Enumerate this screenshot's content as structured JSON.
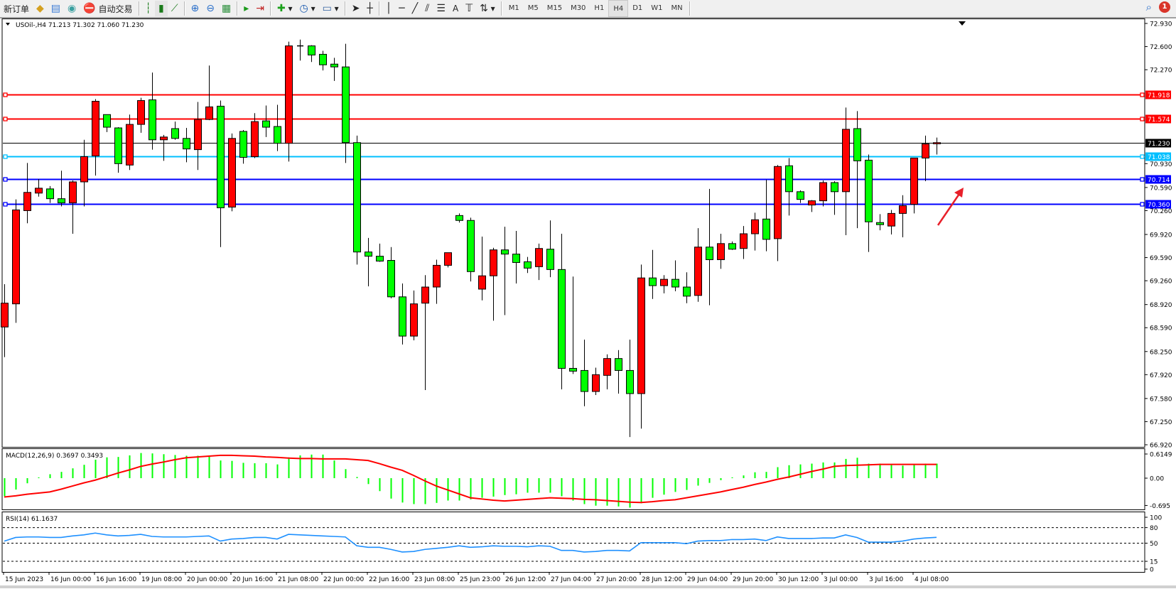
{
  "toolbar": {
    "new_order_label": "新订单",
    "auto_trading_label": "自动交易",
    "icons": [
      "new-order-icon",
      "market-watch-icon",
      "navigator-icon",
      "signals-icon",
      "autotrading-icon",
      "bar-chart-icon",
      "candlestick-icon",
      "line-chart-icon",
      "zoom-in-icon",
      "zoom-out-icon",
      "tile-windows-icon",
      "auto-scroll-icon",
      "chart-shift-icon",
      "indicators-icon",
      "periods-icon",
      "templates-icon",
      "cursor-icon",
      "crosshair-icon",
      "vertical-line-icon",
      "horizontal-line-icon",
      "trendline-icon",
      "fibonacci-icon",
      "fibo-fan-icon",
      "text-icon",
      "text-label-icon",
      "arrows-icon",
      "search-icon",
      "notifications-icon"
    ],
    "text_tool": "A",
    "timeframes": [
      "M1",
      "M5",
      "M15",
      "M30",
      "H1",
      "H4",
      "D1",
      "W1",
      "MN"
    ],
    "active_timeframe": "H4",
    "notification_count": "1"
  },
  "chart_data": {
    "type": "candlestick",
    "header": "USOil-,H4  71.213 71.302 71.060 71.230",
    "symbol": "USOil-",
    "timeframe": "H4",
    "ohlc_readout": {
      "open": 71.213,
      "high": 71.302,
      "low": 71.06,
      "close": 71.23
    },
    "ylim": [
      66.92,
      72.93
    ],
    "colors": {
      "up": "#ff0000",
      "down": "#00ff00",
      "wick": "#000000"
    },
    "price_axis": {
      "ticks": [
        "72.930",
        "72.600",
        "72.270",
        "70.930",
        "70.590",
        "70.260",
        "69.920",
        "69.590",
        "69.260",
        "68.920",
        "68.590",
        "68.250",
        "67.920",
        "67.580",
        "67.250",
        "66.920"
      ]
    },
    "time_axis": {
      "labels": [
        "15 Jun 2023",
        "16 Jun 00:00",
        "16 Jun 16:00",
        "19 Jun 08:00",
        "20 Jun 00:00",
        "20 Jun 16:00",
        "21 Jun 08:00",
        "22 Jun 00:00",
        "22 Jun 16:00",
        "23 Jun 08:00",
        "25 Jun 23:00",
        "26 Jun 12:00",
        "27 Jun 04:00",
        "27 Jun 20:00",
        "28 Jun 12:00",
        "29 Jun 04:00",
        "29 Jun 20:00",
        "30 Jun 12:00",
        "3 Jul 00:00",
        "3 Jul 16:00",
        "4 Jul 08:00"
      ],
      "bars_per_label": 4
    },
    "candles_ohlc": [
      [
        68.6,
        69.21,
        68.17,
        68.94
      ],
      [
        68.93,
        70.42,
        68.66,
        70.27
      ],
      [
        70.26,
        70.94,
        70.08,
        70.52
      ],
      [
        70.51,
        70.71,
        70.46,
        70.58
      ],
      [
        70.57,
        70.61,
        70.37,
        70.43
      ],
      [
        70.43,
        70.83,
        70.32,
        70.37
      ],
      [
        70.37,
        70.69,
        69.93,
        70.67
      ],
      [
        70.67,
        71.27,
        70.32,
        71.03
      ],
      [
        71.04,
        71.85,
        70.76,
        71.82
      ],
      [
        71.63,
        71.63,
        71.38,
        71.45
      ],
      [
        71.44,
        71.45,
        70.8,
        70.93
      ],
      [
        70.91,
        71.63,
        70.84,
        71.49
      ],
      [
        71.49,
        71.87,
        71.37,
        71.83
      ],
      [
        71.84,
        72.23,
        71.13,
        71.27
      ],
      [
        71.27,
        71.34,
        70.97,
        71.31
      ],
      [
        71.43,
        71.53,
        71.27,
        71.29
      ],
      [
        71.29,
        71.44,
        70.95,
        71.14
      ],
      [
        71.13,
        71.81,
        70.84,
        71.56
      ],
      [
        71.56,
        72.33,
        71.55,
        71.74
      ],
      [
        71.75,
        71.83,
        69.74,
        70.3
      ],
      [
        70.31,
        71.36,
        70.25,
        71.29
      ],
      [
        71.39,
        71.41,
        70.93,
        71.02
      ],
      [
        71.03,
        71.65,
        71.01,
        71.53
      ],
      [
        71.54,
        71.76,
        71.31,
        71.45
      ],
      [
        71.46,
        71.77,
        71.11,
        71.22
      ],
      [
        71.22,
        72.67,
        70.96,
        72.61
      ],
      [
        72.61,
        72.7,
        72.4,
        72.61
      ],
      [
        72.61,
        72.62,
        72.38,
        72.48
      ],
      [
        72.49,
        72.54,
        72.26,
        72.34
      ],
      [
        72.35,
        72.44,
        72.11,
        72.31
      ],
      [
        72.31,
        72.64,
        70.94,
        71.23
      ],
      [
        71.23,
        71.33,
        69.49,
        69.67
      ],
      [
        69.67,
        69.87,
        69.18,
        69.61
      ],
      [
        69.61,
        69.79,
        69.53,
        69.54
      ],
      [
        69.55,
        69.74,
        69.01,
        69.03
      ],
      [
        69.03,
        69.22,
        68.35,
        68.47
      ],
      [
        68.47,
        69.12,
        68.41,
        68.93
      ],
      [
        68.94,
        69.34,
        67.7,
        69.17
      ],
      [
        69.17,
        69.56,
        68.93,
        69.48
      ],
      [
        69.48,
        69.66,
        69.45,
        69.66
      ],
      [
        70.19,
        70.22,
        70.09,
        70.12
      ],
      [
        70.12,
        70.16,
        69.25,
        69.39
      ],
      [
        69.14,
        69.89,
        68.98,
        69.33
      ],
      [
        69.33,
        69.73,
        68.69,
        69.7
      ],
      [
        69.7,
        70.03,
        68.77,
        69.64
      ],
      [
        69.64,
        69.97,
        69.22,
        69.52
      ],
      [
        69.53,
        69.6,
        69.37,
        69.44
      ],
      [
        69.46,
        69.79,
        69.27,
        69.72
      ],
      [
        69.71,
        70.12,
        69.31,
        69.42
      ],
      [
        69.42,
        69.93,
        67.71,
        68.01
      ],
      [
        68.01,
        69.32,
        67.93,
        67.97
      ],
      [
        67.98,
        68.42,
        67.47,
        67.68
      ],
      [
        67.68,
        68.02,
        67.63,
        67.92
      ],
      [
        67.91,
        68.21,
        67.71,
        68.15
      ],
      [
        68.15,
        68.27,
        67.65,
        67.98
      ],
      [
        67.98,
        68.42,
        67.03,
        67.65
      ],
      [
        67.65,
        69.49,
        67.15,
        69.3
      ],
      [
        69.3,
        69.7,
        69.0,
        69.19
      ],
      [
        69.19,
        69.34,
        69.08,
        69.28
      ],
      [
        69.28,
        69.55,
        69.11,
        69.17
      ],
      [
        69.17,
        69.38,
        68.94,
        69.04
      ],
      [
        69.05,
        70.01,
        68.96,
        69.74
      ],
      [
        69.74,
        70.57,
        68.91,
        69.56
      ],
      [
        69.56,
        69.93,
        69.43,
        69.79
      ],
      [
        69.79,
        69.82,
        69.7,
        69.71
      ],
      [
        69.72,
        70.04,
        69.57,
        69.93
      ],
      [
        69.93,
        70.23,
        69.69,
        70.13
      ],
      [
        70.14,
        70.7,
        69.68,
        69.85
      ],
      [
        69.86,
        70.91,
        69.54,
        70.89
      ],
      [
        70.9,
        71.01,
        70.19,
        70.53
      ],
      [
        70.53,
        70.55,
        70.37,
        70.42
      ],
      [
        70.34,
        70.41,
        70.24,
        70.4
      ],
      [
        70.4,
        70.69,
        70.32,
        70.66
      ],
      [
        70.66,
        70.68,
        70.2,
        70.53
      ],
      [
        70.53,
        71.73,
        69.91,
        71.42
      ],
      [
        71.43,
        71.68,
        70.01,
        70.97
      ],
      [
        70.98,
        71.06,
        69.67,
        70.1
      ],
      [
        70.09,
        70.21,
        69.98,
        70.06
      ],
      [
        70.04,
        70.27,
        69.92,
        70.22
      ],
      [
        70.22,
        70.48,
        69.88,
        70.33
      ],
      [
        70.35,
        71.01,
        70.22,
        71.01
      ],
      [
        71.01,
        71.33,
        70.68,
        71.21
      ],
      [
        71.213,
        71.302,
        71.06,
        71.23
      ]
    ],
    "levels": [
      {
        "price": 71.918,
        "label": "71.918",
        "color": "#ff0000"
      },
      {
        "price": 71.574,
        "label": "71.574",
        "color": "#ff0000"
      },
      {
        "price": 71.23,
        "label": "71.230",
        "color": "#000000",
        "kind": "current-price"
      },
      {
        "price": 71.038,
        "label": "71.038",
        "color": "#00bfff"
      },
      {
        "price": 70.714,
        "label": "70.714",
        "color": "#0000ff"
      },
      {
        "price": 70.36,
        "label": "70.360",
        "color": "#0000ff"
      }
    ],
    "annotation": {
      "type": "arrow",
      "color": "#e8202a",
      "direction": "up-right"
    },
    "macd": {
      "label": "MACD(12,26,9) 0.3697 0.3493",
      "ticks": [
        "0.6149",
        "0.00",
        "-0.695"
      ],
      "ylim": [
        -0.695,
        0.6149
      ],
      "main_color": "#00ff00",
      "signal_color": "#ff0000",
      "main": [
        -0.46,
        -0.29,
        -0.13,
        0.02,
        0.1,
        0.16,
        0.25,
        0.34,
        0.47,
        0.53,
        0.54,
        0.58,
        0.64,
        0.63,
        0.61,
        0.59,
        0.57,
        0.57,
        0.57,
        0.45,
        0.44,
        0.39,
        0.38,
        0.38,
        0.35,
        0.53,
        0.58,
        0.6,
        0.6,
        0.45,
        0.23,
        0.03,
        -0.15,
        -0.33,
        -0.52,
        -0.62,
        -0.66,
        -0.66,
        -0.63,
        -0.57,
        -0.57,
        -0.54,
        -0.5,
        -0.47,
        -0.43,
        -0.41,
        -0.37,
        -0.37,
        -0.37,
        -0.46,
        -0.57,
        -0.66,
        -0.7,
        -0.7,
        -0.72,
        -0.75,
        -0.64,
        -0.5,
        -0.42,
        -0.35,
        -0.3,
        -0.19,
        -0.12,
        -0.05,
        0.02,
        0.07,
        0.15,
        0.16,
        0.28,
        0.33,
        0.35,
        0.37,
        0.4,
        0.4,
        0.49,
        0.52,
        0.37,
        0.37,
        0.34,
        0.32,
        0.36,
        0.37,
        0.3697
      ],
      "signal": [
        -0.48,
        -0.45,
        -0.41,
        -0.38,
        -0.35,
        -0.28,
        -0.2,
        -0.12,
        -0.05,
        0.04,
        0.13,
        0.21,
        0.3,
        0.36,
        0.41,
        0.47,
        0.52,
        0.54,
        0.56,
        0.58,
        0.58,
        0.57,
        0.56,
        0.54,
        0.53,
        0.51,
        0.5,
        0.5,
        0.49,
        0.49,
        0.49,
        0.47,
        0.45,
        0.37,
        0.28,
        0.2,
        0.07,
        -0.07,
        -0.2,
        -0.3,
        -0.4,
        -0.5,
        -0.53,
        -0.56,
        -0.58,
        -0.56,
        -0.54,
        -0.52,
        -0.5,
        -0.51,
        -0.52,
        -0.54,
        -0.55,
        -0.57,
        -0.59,
        -0.61,
        -0.62,
        -0.6,
        -0.57,
        -0.55,
        -0.5,
        -0.45,
        -0.4,
        -0.35,
        -0.29,
        -0.23,
        -0.16,
        -0.1,
        -0.03,
        0.03,
        0.1,
        0.17,
        0.23,
        0.3,
        0.32,
        0.33,
        0.34,
        0.35,
        0.35,
        0.35,
        0.35,
        0.35,
        0.3493
      ]
    },
    "rsi": {
      "label": "RSI(14) 61.1637",
      "ticks": [
        "100",
        "80",
        "50",
        "15",
        "0"
      ],
      "levels": [
        80,
        50,
        15
      ],
      "ylim": [
        0,
        100
      ],
      "color": "#1e90ff",
      "values": [
        54,
        61,
        62,
        62,
        61,
        61,
        64,
        66,
        69.5,
        66,
        64,
        65,
        67,
        63,
        62,
        62,
        62,
        63,
        64,
        54,
        58,
        59,
        61,
        61,
        58,
        67,
        66,
        65,
        64,
        63,
        62,
        45,
        42,
        42,
        38,
        33,
        34,
        38,
        40,
        42,
        45,
        42,
        43,
        45,
        44,
        44,
        43,
        45,
        44,
        36,
        36,
        33,
        34,
        36,
        36,
        35,
        51,
        51,
        51,
        51,
        49,
        54,
        55,
        55,
        57,
        57,
        58,
        55,
        62,
        59,
        59,
        59,
        60,
        60,
        66,
        61,
        52,
        52,
        52,
        54,
        58,
        60,
        61.1637
      ]
    }
  }
}
